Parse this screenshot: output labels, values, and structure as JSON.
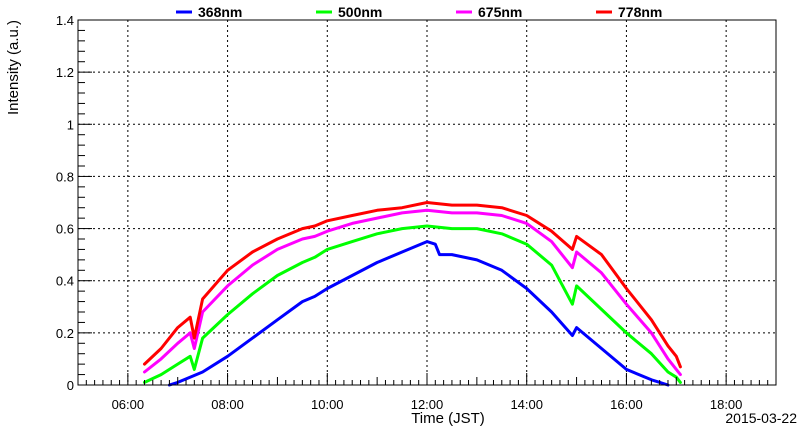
{
  "chart_data": {
    "type": "line",
    "xlabel": "Time (JST)",
    "ylabel": "Intensity (a.u.)",
    "date_label": "2015-03-22",
    "xlim": [
      "05:00",
      "19:00"
    ],
    "ylim": [
      0,
      1.4
    ],
    "grid": true,
    "legend_position": "top",
    "x_ticks": [
      "06:00",
      "08:00",
      "10:00",
      "12:00",
      "14:00",
      "16:00",
      "18:00"
    ],
    "y_ticks": [
      "0",
      "0.2",
      "0.4",
      "0.6",
      "0.8",
      "1",
      "1.2",
      "1.4"
    ],
    "series": [
      {
        "name": "368nm",
        "color": "#0000ff",
        "points": [
          [
            "06:50",
            0.0
          ],
          [
            "07:00",
            0.01
          ],
          [
            "07:30",
            0.05
          ],
          [
            "08:00",
            0.11
          ],
          [
            "08:30",
            0.18
          ],
          [
            "09:00",
            0.25
          ],
          [
            "09:30",
            0.32
          ],
          [
            "09:45",
            0.34
          ],
          [
            "10:00",
            0.37
          ],
          [
            "10:30",
            0.42
          ],
          [
            "11:00",
            0.47
          ],
          [
            "11:30",
            0.51
          ],
          [
            "12:00",
            0.55
          ],
          [
            "12:10",
            0.54
          ],
          [
            "12:15",
            0.5
          ],
          [
            "12:30",
            0.5
          ],
          [
            "13:00",
            0.48
          ],
          [
            "13:30",
            0.44
          ],
          [
            "14:00",
            0.37
          ],
          [
            "14:30",
            0.28
          ],
          [
            "14:55",
            0.19
          ],
          [
            "15:00",
            0.22
          ],
          [
            "15:30",
            0.14
          ],
          [
            "16:00",
            0.06
          ],
          [
            "16:30",
            0.02
          ],
          [
            "16:50",
            0.0
          ]
        ]
      },
      {
        "name": "500nm",
        "color": "#00ff00",
        "points": [
          [
            "06:20",
            0.01
          ],
          [
            "06:40",
            0.04
          ],
          [
            "07:00",
            0.08
          ],
          [
            "07:15",
            0.11
          ],
          [
            "07:20",
            0.06
          ],
          [
            "07:30",
            0.18
          ],
          [
            "08:00",
            0.27
          ],
          [
            "08:30",
            0.35
          ],
          [
            "09:00",
            0.42
          ],
          [
            "09:30",
            0.47
          ],
          [
            "09:45",
            0.49
          ],
          [
            "10:00",
            0.52
          ],
          [
            "10:30",
            0.55
          ],
          [
            "11:00",
            0.58
          ],
          [
            "11:30",
            0.6
          ],
          [
            "12:00",
            0.61
          ],
          [
            "12:30",
            0.6
          ],
          [
            "13:00",
            0.6
          ],
          [
            "13:30",
            0.58
          ],
          [
            "14:00",
            0.54
          ],
          [
            "14:30",
            0.46
          ],
          [
            "14:55",
            0.31
          ],
          [
            "15:00",
            0.38
          ],
          [
            "15:30",
            0.29
          ],
          [
            "16:00",
            0.2
          ],
          [
            "16:30",
            0.12
          ],
          [
            "16:50",
            0.05
          ],
          [
            "17:00",
            0.03
          ],
          [
            "17:05",
            0.01
          ]
        ]
      },
      {
        "name": "675nm",
        "color": "#ff00ff",
        "points": [
          [
            "06:20",
            0.05
          ],
          [
            "06:40",
            0.1
          ],
          [
            "07:00",
            0.16
          ],
          [
            "07:15",
            0.2
          ],
          [
            "07:20",
            0.14
          ],
          [
            "07:30",
            0.28
          ],
          [
            "08:00",
            0.38
          ],
          [
            "08:30",
            0.46
          ],
          [
            "09:00",
            0.52
          ],
          [
            "09:30",
            0.56
          ],
          [
            "09:45",
            0.57
          ],
          [
            "10:00",
            0.59
          ],
          [
            "10:30",
            0.62
          ],
          [
            "11:00",
            0.64
          ],
          [
            "11:30",
            0.66
          ],
          [
            "12:00",
            0.67
          ],
          [
            "12:30",
            0.66
          ],
          [
            "13:00",
            0.66
          ],
          [
            "13:30",
            0.65
          ],
          [
            "14:00",
            0.62
          ],
          [
            "14:30",
            0.55
          ],
          [
            "14:55",
            0.45
          ],
          [
            "15:00",
            0.51
          ],
          [
            "15:30",
            0.43
          ],
          [
            "16:00",
            0.31
          ],
          [
            "16:30",
            0.2
          ],
          [
            "16:50",
            0.1
          ],
          [
            "17:00",
            0.06
          ],
          [
            "17:05",
            0.04
          ]
        ]
      },
      {
        "name": "778nm",
        "color": "#ff0000",
        "points": [
          [
            "06:20",
            0.08
          ],
          [
            "06:40",
            0.14
          ],
          [
            "07:00",
            0.22
          ],
          [
            "07:15",
            0.26
          ],
          [
            "07:20",
            0.18
          ],
          [
            "07:30",
            0.33
          ],
          [
            "08:00",
            0.44
          ],
          [
            "08:30",
            0.51
          ],
          [
            "09:00",
            0.56
          ],
          [
            "09:30",
            0.6
          ],
          [
            "09:45",
            0.61
          ],
          [
            "10:00",
            0.63
          ],
          [
            "10:30",
            0.65
          ],
          [
            "11:00",
            0.67
          ],
          [
            "11:30",
            0.68
          ],
          [
            "12:00",
            0.7
          ],
          [
            "12:30",
            0.69
          ],
          [
            "13:00",
            0.69
          ],
          [
            "13:30",
            0.68
          ],
          [
            "14:00",
            0.65
          ],
          [
            "14:30",
            0.59
          ],
          [
            "14:55",
            0.52
          ],
          [
            "15:00",
            0.57
          ],
          [
            "15:30",
            0.5
          ],
          [
            "16:00",
            0.37
          ],
          [
            "16:30",
            0.25
          ],
          [
            "16:50",
            0.15
          ],
          [
            "17:00",
            0.11
          ],
          [
            "17:05",
            0.07
          ]
        ]
      }
    ]
  }
}
